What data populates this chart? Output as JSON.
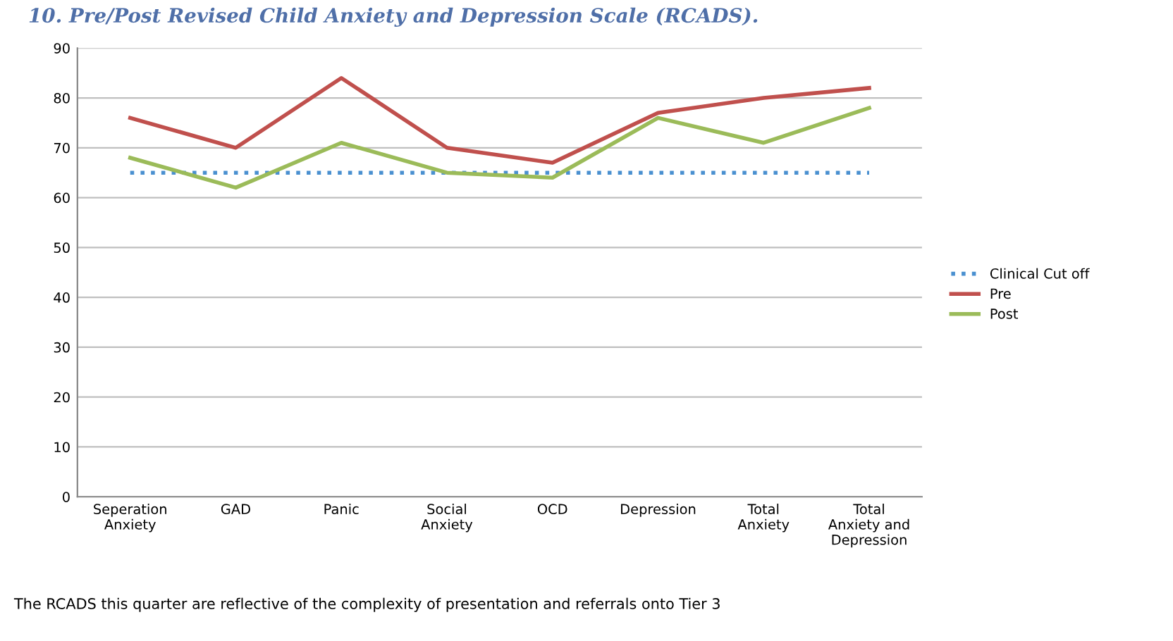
{
  "chart_data": {
    "type": "line",
    "title": "10. Pre/Post Revised Child Anxiety and Depression Scale (RCADS).",
    "categories": [
      "Seperation\nAnxiety",
      "GAD",
      "Panic",
      "Social\nAnxiety",
      "OCD",
      "Depression",
      "Total\nAnxiety",
      "Total\nAnxiety and\nDepression"
    ],
    "series": [
      {
        "name": "Clinical Cut off",
        "color": "#4a90d0",
        "line_style": "dotted",
        "values": [
          65,
          65,
          65,
          65,
          65,
          65,
          65,
          65
        ]
      },
      {
        "name": "Pre",
        "color": "#c0504d",
        "values": [
          76,
          70,
          84,
          70,
          67,
          77,
          80,
          82
        ]
      },
      {
        "name": "Post",
        "color": "#9bbb59",
        "values": [
          68,
          62,
          71,
          65,
          64,
          76,
          71,
          78
        ]
      }
    ],
    "ylim": [
      0,
      90
    ],
    "yticks": [
      0,
      10,
      20,
      30,
      40,
      50,
      60,
      70,
      80,
      90
    ],
    "grid": "y",
    "legend": "right",
    "marker": "none",
    "annotations": [
      "The RCADS this quarter are reflective of the complexity of presentation and referrals onto Tier 3"
    ]
  }
}
